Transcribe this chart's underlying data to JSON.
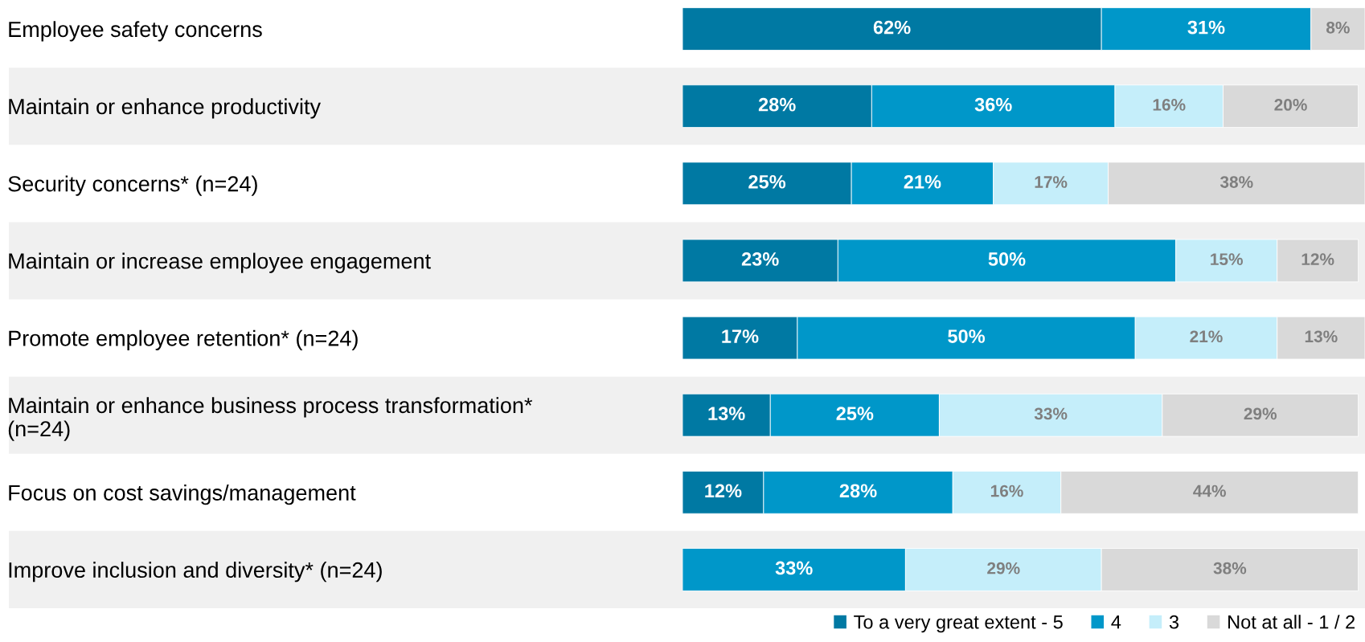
{
  "chart_data": {
    "type": "bar",
    "orientation": "horizontal",
    "stacked": true,
    "categories": [
      "Employee safety concerns",
      "Maintain or enhance productivity",
      "Security concerns* (n=24)",
      "Maintain or increase employee engagement",
      "Promote employee retention* (n=24)",
      "Maintain or enhance business process transformation*\n(n=24)",
      "Focus on cost savings/management",
      "Improve inclusion and diversity* (n=24)"
    ],
    "series": [
      {
        "name": "To a very great extent - 5",
        "color": "#0079a3",
        "values": [
          62,
          28,
          25,
          23,
          17,
          13,
          12,
          null
        ],
        "value_labels": [
          "62%",
          "28%",
          "25%",
          "23%",
          "17%",
          "13%",
          "12%",
          null
        ]
      },
      {
        "name": "4",
        "color": "#0097c9",
        "values": [
          31,
          36,
          21,
          50,
          50,
          25,
          28,
          33
        ],
        "value_labels": [
          "31%",
          "36%",
          "21%",
          "50%",
          "50%",
          "25%",
          "28%",
          "33%"
        ]
      },
      {
        "name": "3",
        "color": "#c5eefa",
        "values": [
          null,
          16,
          17,
          15,
          21,
          33,
          16,
          29
        ],
        "value_labels": [
          null,
          "16%",
          "17%",
          "15%",
          "21%",
          "33%",
          "16%",
          "29%"
        ]
      },
      {
        "name": "Not at all - 1 / 2",
        "color": "#d9d9d9",
        "values": [
          8,
          20,
          38,
          12,
          13,
          29,
          44,
          38
        ],
        "value_labels": [
          "8%",
          "20%",
          "38%",
          "12%",
          "13%",
          "29%",
          "44%",
          "38%"
        ]
      }
    ],
    "bands": [
      {
        "axis": "y",
        "from": "Maintain or enhance productivity",
        "to": "Maintain or enhance productivity",
        "color": "#f0f0f0"
      },
      {
        "axis": "y",
        "from": "Maintain or increase employee engagement",
        "to": "Maintain or increase employee engagement",
        "color": "#f0f0f0"
      },
      {
        "axis": "y",
        "from": "Maintain or enhance business process transformation*\n(n=24)",
        "to": "Maintain or enhance business process transformation*\n(n=24)",
        "color": "#f0f0f0"
      },
      {
        "axis": "y",
        "from": "Improve inclusion and diversity* (n=24)",
        "to": "Improve inclusion and diversity* (n=24)",
        "color": "#f0f0f0"
      }
    ],
    "xlim": [
      0,
      101
    ],
    "tick_labels": "y",
    "grid": false,
    "legend": "bottom right"
  }
}
